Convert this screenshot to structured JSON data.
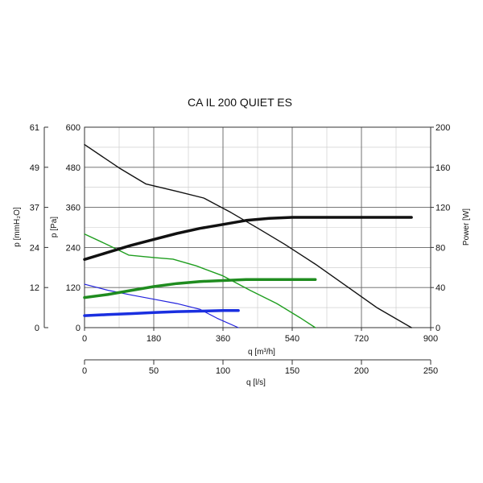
{
  "chart_data": {
    "type": "line",
    "title": "CA IL 200 QUIET ES",
    "xlabel": "q [m³/h]",
    "xlim": [
      0,
      900
    ],
    "xticks": [
      "0",
      "180",
      "360",
      "540",
      "720",
      "900"
    ],
    "secondary_x": {
      "label": "q [l/s]",
      "lim": [
        0,
        250
      ],
      "ticks": [
        "0",
        "50",
        "100",
        "150",
        "200",
        "250"
      ]
    },
    "ylabel": "p [Pa]",
    "ylim": [
      0,
      600
    ],
    "yticks": [
      "0",
      "120",
      "240",
      "360",
      "480",
      "600"
    ],
    "outer_y": {
      "label": "p [mmH₂O]",
      "ticks": [
        "0",
        "12",
        "24",
        "37",
        "49",
        "61"
      ]
    },
    "right_y": {
      "label": "Power [W]",
      "lim": [
        0,
        200
      ],
      "ticks": [
        "0",
        "40",
        "80",
        "120",
        "160",
        "200"
      ]
    },
    "grid": true,
    "series": [
      {
        "axis": "pressure",
        "color": "#111111",
        "width": 1.4,
        "x": [
          0,
          90,
          160,
          240,
          310,
          380,
          450,
          520,
          600,
          680,
          760,
          850
        ],
        "y": [
          548,
          478,
          430,
          408,
          388,
          345,
          298,
          250,
          190,
          125,
          60,
          0
        ]
      },
      {
        "axis": "pressure",
        "color": "#1f9e1f",
        "width": 1.4,
        "x": [
          0,
          60,
          115,
          180,
          230,
          290,
          360,
          430,
          500,
          560,
          600
        ],
        "y": [
          280,
          248,
          217,
          210,
          205,
          185,
          155,
          112,
          72,
          30,
          0
        ]
      },
      {
        "axis": "pressure",
        "color": "#2222dd",
        "width": 1.2,
        "x": [
          0,
          60,
          120,
          180,
          240,
          300,
          345,
          400
        ],
        "y": [
          130,
          112,
          98,
          85,
          72,
          55,
          28,
          0
        ]
      },
      {
        "axis": "power",
        "color": "#111111",
        "width": 3.5,
        "x": [
          0,
          60,
          120,
          180,
          240,
          300,
          360,
          420,
          480,
          540,
          600,
          700,
          800,
          850
        ],
        "y": [
          68,
          75,
          82,
          88,
          94,
          99,
          103,
          107,
          109,
          110,
          110,
          110,
          110,
          110
        ]
      },
      {
        "axis": "power",
        "color": "#1f8c1f",
        "width": 3.5,
        "x": [
          0,
          60,
          120,
          180,
          240,
          300,
          360,
          420,
          480,
          540,
          600
        ],
        "y": [
          30,
          33,
          37,
          41,
          44,
          46,
          47,
          48,
          48,
          48,
          48
        ]
      },
      {
        "axis": "power",
        "color": "#1a2fe0",
        "width": 3.5,
        "x": [
          0,
          60,
          120,
          180,
          240,
          300,
          360,
          400
        ],
        "y": [
          12,
          13,
          14,
          15,
          16,
          16.5,
          17,
          17
        ]
      }
    ]
  }
}
